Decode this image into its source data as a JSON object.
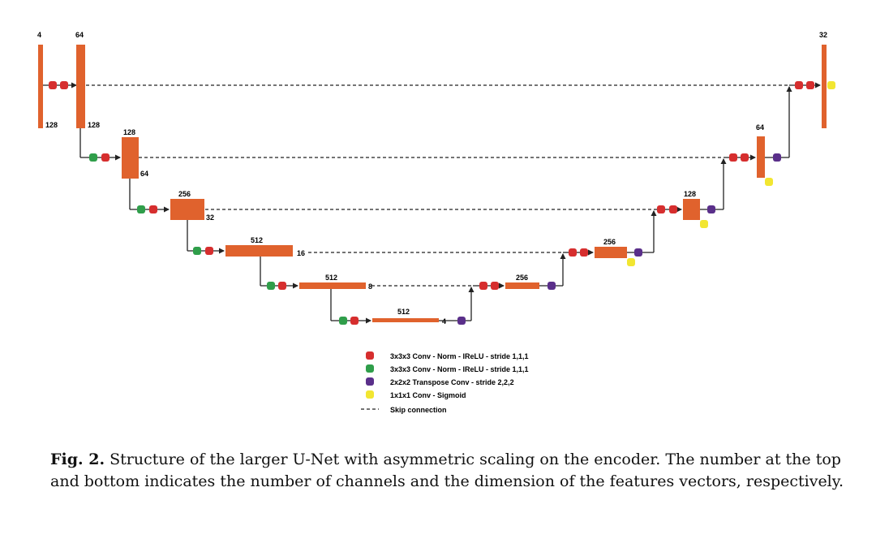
{
  "colors": {
    "block": "#e0622d",
    "conv_red": "#d62e2e",
    "conv_green": "#2f9e4a",
    "transpose_purple": "#5a2f8a",
    "sigmoid_yellow": "#f2e631",
    "line": "#222222"
  },
  "blocks": {
    "enc_in_top": "4",
    "enc_in_bottom": "128",
    "enc1_top": "64",
    "enc1_bottom": "128",
    "enc2_top": "128",
    "enc2_bottom": "64",
    "enc3_top": "256",
    "enc3_bottom": "32",
    "enc4_top": "512",
    "enc4_bottom": "16",
    "enc5_top": "512",
    "enc5_bottom": "8",
    "bottleneck_top": "512",
    "bottleneck_bottom": "4",
    "dec1_top": "256",
    "dec2_top": "256",
    "dec3_top": "128",
    "dec4_top": "64",
    "out_top": "32"
  },
  "legend": [
    {
      "color_key": "conv_red",
      "icon": "red-dot-icon",
      "label": "3x3x3 Conv - Norm - lReLU - stride 1,1,1"
    },
    {
      "color_key": "conv_green",
      "icon": "green-dot-icon",
      "label": "3x3x3 Conv - Norm - lReLU - stride 1,1,1"
    },
    {
      "color_key": "transpose_purple",
      "icon": "purple-dot-icon",
      "label": "2x2x2 Transpose Conv - stride 2,2,2"
    },
    {
      "color_key": "sigmoid_yellow",
      "icon": "yellow-dot-icon",
      "label": "1x1x1 Conv - Sigmoid"
    },
    {
      "icon": "dashed-line-icon",
      "label": "Skip connection"
    }
  ],
  "caption": {
    "label": "Fig. 2.",
    "text": "Structure of the larger U-Net with asymmetric scaling on the encoder. The number at the top and bottom indicates the number of channels and the dimension of the features vectors, respectively."
  }
}
